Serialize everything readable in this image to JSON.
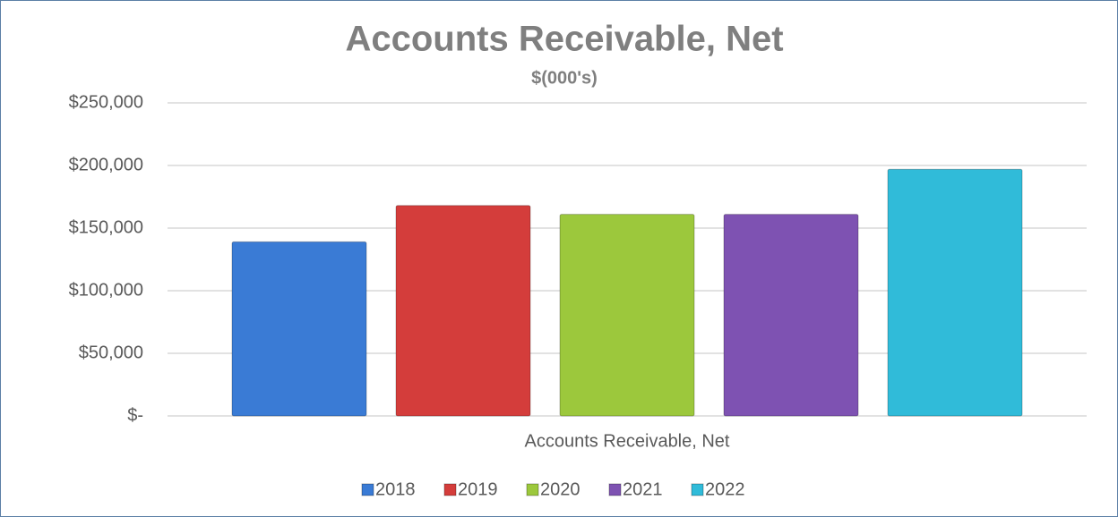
{
  "chart_data": {
    "type": "bar",
    "title": "Accounts Receivable, Net",
    "subtitle": "$(000's)",
    "categories": [
      "Accounts Receivable, Net"
    ],
    "series": [
      {
        "name": "2018",
        "color": "#3a7bd5",
        "values": [
          139000
        ]
      },
      {
        "name": "2019",
        "color": "#d43d3b",
        "values": [
          168000
        ]
      },
      {
        "name": "2020",
        "color": "#9cc83c",
        "values": [
          161000
        ]
      },
      {
        "name": "2021",
        "color": "#7e52b2",
        "values": [
          161000
        ]
      },
      {
        "name": "2022",
        "color": "#30bbd9",
        "values": [
          197000
        ]
      }
    ],
    "ylim": [
      0,
      250000
    ],
    "yticks": [
      {
        "value": 0,
        "label": "$-"
      },
      {
        "value": 50000,
        "label": "$50,000"
      },
      {
        "value": 100000,
        "label": "$100,000"
      },
      {
        "value": 150000,
        "label": "$150,000"
      },
      {
        "value": 200000,
        "label": "$200,000"
      },
      {
        "value": 250000,
        "label": "$250,000"
      }
    ],
    "grid": true,
    "legend": "bottom"
  }
}
